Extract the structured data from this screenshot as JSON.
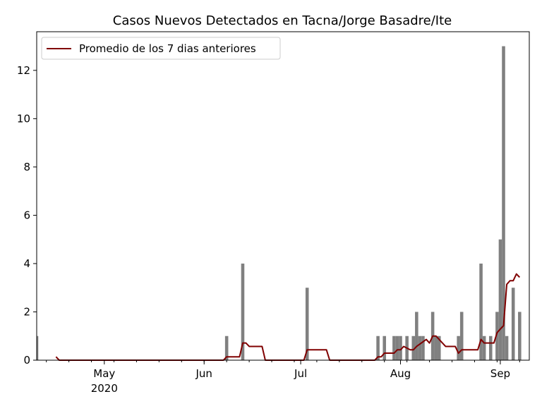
{
  "chart_data": {
    "type": "bar",
    "title": "Casos Nuevos Detectados en Tacna/Jorge Basadre/Ite",
    "xlabel": "",
    "ylabel": "",
    "x_range": [
      "2020-04-10",
      "2020-09-10"
    ],
    "ylim": [
      0,
      13.6
    ],
    "y_ticks": [
      0,
      2,
      4,
      6,
      8,
      10,
      12
    ],
    "y_tick_labels": [
      "0",
      "2",
      "4",
      "6",
      "8",
      "10",
      "12"
    ],
    "x_ticks": [
      {
        "date": "2020-05-01",
        "label": "May",
        "sublabel": "2020"
      },
      {
        "date": "2020-06-01",
        "label": "Jun",
        "sublabel": ""
      },
      {
        "date": "2020-07-01",
        "label": "Jul",
        "sublabel": ""
      },
      {
        "date": "2020-08-01",
        "label": "Aug",
        "sublabel": ""
      },
      {
        "date": "2020-09-01",
        "label": "Sep",
        "sublabel": ""
      }
    ],
    "grid": false,
    "legend_position": "top-left",
    "bar_color": "#808080",
    "line_color": "#800000",
    "series": [
      {
        "kind": "bar",
        "x": [
          "2020-04-10",
          "2020-06-08",
          "2020-06-13",
          "2020-07-03",
          "2020-07-25",
          "2020-07-27",
          "2020-07-30",
          "2020-07-31",
          "2020-08-01",
          "2020-08-03",
          "2020-08-05",
          "2020-08-06",
          "2020-08-07",
          "2020-08-08",
          "2020-08-11",
          "2020-08-12",
          "2020-08-13",
          "2020-08-19",
          "2020-08-20",
          "2020-08-26",
          "2020-08-27",
          "2020-08-29",
          "2020-08-31",
          "2020-09-01",
          "2020-09-02",
          "2020-09-03",
          "2020-09-05",
          "2020-09-07"
        ],
        "values": [
          1,
          1,
          4,
          3,
          1,
          1,
          1,
          1,
          1,
          1,
          1,
          2,
          1,
          1,
          2,
          1,
          1,
          1,
          2,
          4,
          1,
          1,
          2,
          5,
          13,
          1,
          3,
          2
        ]
      },
      {
        "kind": "line",
        "name": "Promedio de los 7 dias anteriores",
        "x": [
          "2020-04-16",
          "2020-04-17",
          "2020-06-07",
          "2020-06-08",
          "2020-06-12",
          "2020-06-13",
          "2020-06-14",
          "2020-06-15",
          "2020-06-19",
          "2020-06-20",
          "2020-07-02",
          "2020-07-03",
          "2020-07-09",
          "2020-07-10",
          "2020-07-24",
          "2020-07-25",
          "2020-07-26",
          "2020-07-27",
          "2020-07-30",
          "2020-07-31",
          "2020-08-01",
          "2020-08-02",
          "2020-08-04",
          "2020-08-05",
          "2020-08-06",
          "2020-08-09",
          "2020-08-10",
          "2020-08-11",
          "2020-08-12",
          "2020-08-13",
          "2020-08-15",
          "2020-08-18",
          "2020-08-19",
          "2020-08-20",
          "2020-08-25",
          "2020-08-26",
          "2020-08-27",
          "2020-08-30",
          "2020-08-31",
          "2020-09-01",
          "2020-09-02",
          "2020-09-03",
          "2020-09-04",
          "2020-09-05",
          "2020-09-06",
          "2020-09-07"
        ],
        "values": [
          0.14,
          0,
          0,
          0.14,
          0.14,
          0.71,
          0.71,
          0.57,
          0.57,
          0,
          0,
          0.43,
          0.43,
          0,
          0,
          0.14,
          0.14,
          0.29,
          0.29,
          0.43,
          0.43,
          0.57,
          0.43,
          0.43,
          0.57,
          0.86,
          0.71,
          1.0,
          1.0,
          0.86,
          0.57,
          0.57,
          0.29,
          0.43,
          0.43,
          0.86,
          0.71,
          0.71,
          1.14,
          1.29,
          1.43,
          3.14,
          3.29,
          3.29,
          3.57,
          3.43
        ]
      }
    ]
  }
}
